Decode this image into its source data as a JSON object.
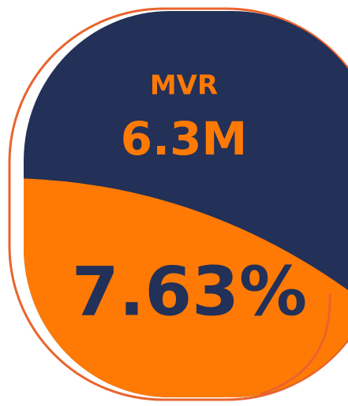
{
  "card": {
    "label": "MVR",
    "amount": "6.3M",
    "percent": "7.63%"
  }
}
